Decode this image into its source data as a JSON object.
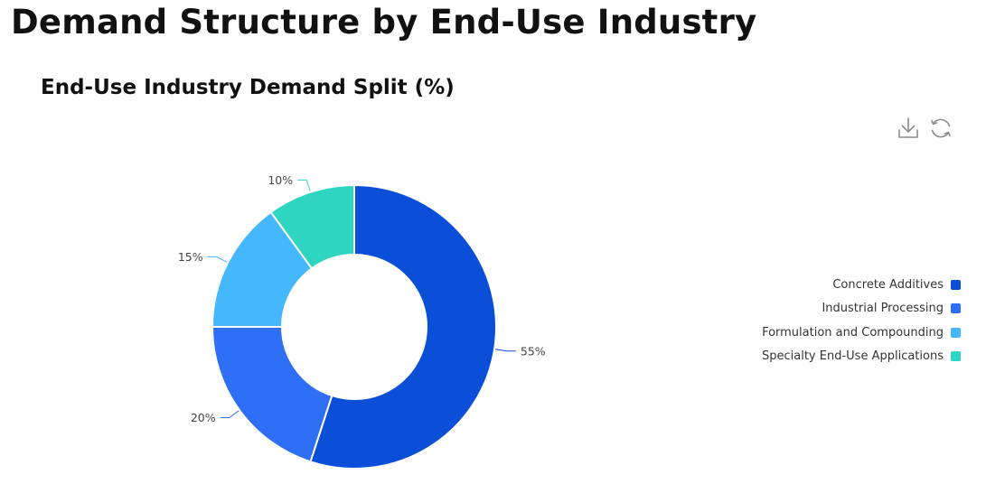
{
  "page": {
    "title": "Demand Structure by End-Use Industry"
  },
  "toolbar": {
    "download_icon": "download-icon",
    "refresh_icon": "refresh-icon"
  },
  "chart_data": {
    "type": "pie",
    "variant": "donut",
    "title": "End-Use Industry Demand Split (%)",
    "categories": [
      "Concrete Additives",
      "Industrial Processing",
      "Formulation and Compounding",
      "Specialty End-Use Applications"
    ],
    "values": [
      55,
      20,
      15,
      10
    ],
    "data_labels": [
      "55%",
      "20%",
      "15%",
      "10%"
    ],
    "colors": [
      "#0b4ed8",
      "#2f6ff5",
      "#45b7fc",
      "#2ed6c2"
    ],
    "legend_position": "right"
  }
}
